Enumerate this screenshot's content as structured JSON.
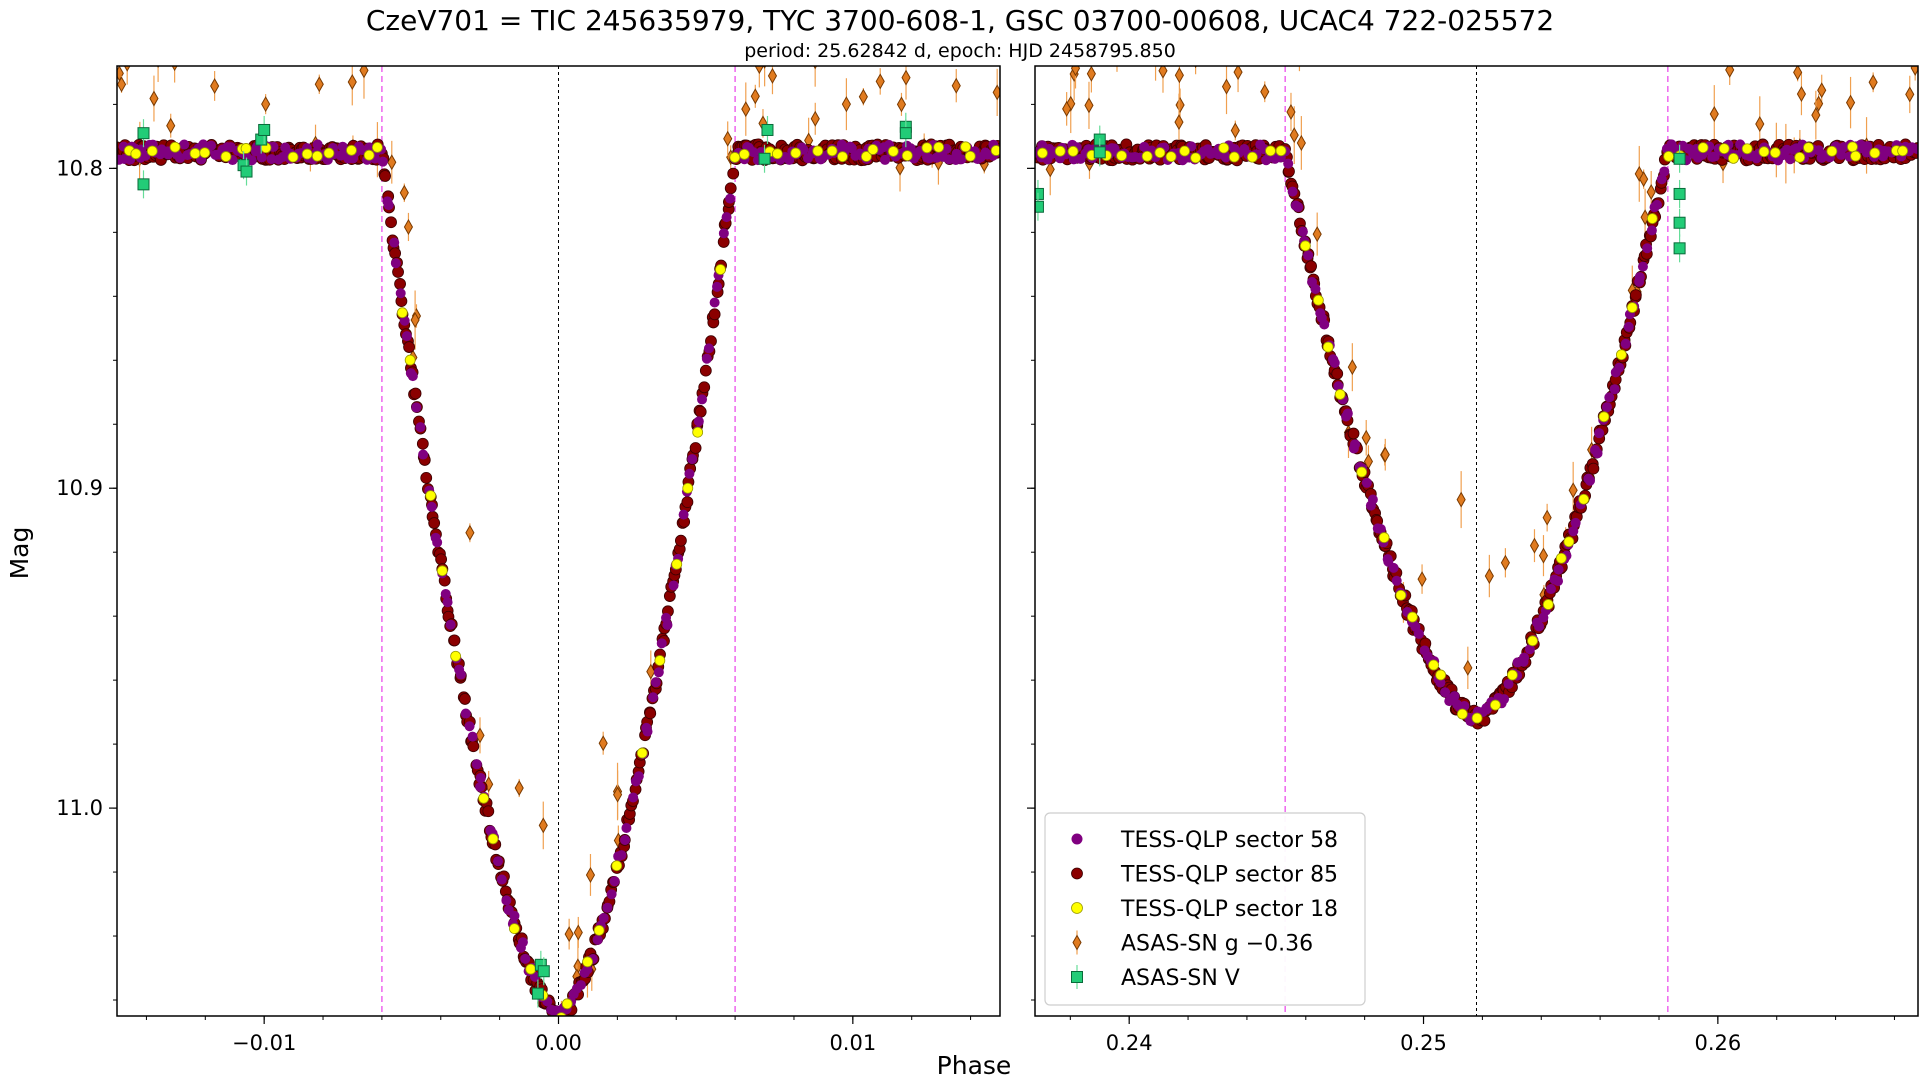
{
  "chart_data": {
    "type": "scatter",
    "title": "CzeV701 = TIC 245635979, TYC 3700-608-1, GSC 03700-00608, UCAC4 722-025572",
    "subtitle": "period: 25.62842 d, epoch: HJD 2458795.850",
    "xlabel": "Phase",
    "ylabel": "Mag",
    "y_inverted": true,
    "ylim": [
      11.065,
      10.768
    ],
    "yticks": [
      10.8,
      10.9,
      11.0
    ],
    "ytick_labels": [
      "10.8",
      "10.9",
      "11.0"
    ],
    "panels": [
      {
        "name": "primary",
        "xlim": [
          -0.015,
          0.015
        ],
        "xticks": [
          -0.01,
          0.0,
          0.01
        ],
        "xtick_labels": [
          "−0.01",
          "0.00",
          "0.01"
        ],
        "center": 0.0,
        "half_width": 0.006,
        "min_depth": 11.065,
        "eclipse_marks": [
          -0.006,
          0.006
        ],
        "center_mark": 0.0
      },
      {
        "name": "secondary",
        "xlim": [
          0.2368,
          0.2668
        ],
        "xticks": [
          0.24,
          0.25,
          0.26
        ],
        "xtick_labels": [
          "0.24",
          "0.25",
          "0.26"
        ],
        "center": 0.2518,
        "half_width": 0.0065,
        "min_depth": 10.972,
        "eclipse_marks": [
          0.2453,
          0.2583
        ],
        "center_mark": 0.2518
      }
    ],
    "baseline_mag": 10.795,
    "series": [
      {
        "name": "TESS-QLP sector 58",
        "marker": "circle",
        "color": "#800080",
        "edge": "none"
      },
      {
        "name": "TESS-QLP sector 85",
        "marker": "circle",
        "color": "#8b0000",
        "edge": "#3a0000"
      },
      {
        "name": "TESS-QLP sector 18",
        "marker": "circle",
        "color": "#ffff00",
        "edge": "#999900"
      },
      {
        "name": "ASAS-SN g −0.36",
        "marker": "diamond",
        "color": "#e07b20",
        "edge": "#7a3a00"
      },
      {
        "name": "ASAS-SN V",
        "marker": "square",
        "color": "#22cc77",
        "edge": "#0a6a3a"
      }
    ],
    "asassn_v_points": [
      {
        "panel": 0,
        "x": -0.0141,
        "y": 10.789
      },
      {
        "panel": 0,
        "x": -0.0141,
        "y": 10.805
      },
      {
        "panel": 0,
        "x": -0.0107,
        "y": 10.799
      },
      {
        "panel": 0,
        "x": -0.0106,
        "y": 10.801
      },
      {
        "panel": 0,
        "x": -0.0101,
        "y": 10.791
      },
      {
        "panel": 0,
        "x": -0.01,
        "y": 10.788
      },
      {
        "panel": 0,
        "x": -0.0006,
        "y": 11.049
      },
      {
        "panel": 0,
        "x": -0.0005,
        "y": 11.051
      },
      {
        "panel": 0,
        "x": -0.0007,
        "y": 11.058
      },
      {
        "panel": 0,
        "x": 0.0071,
        "y": 10.788
      },
      {
        "panel": 0,
        "x": 0.007,
        "y": 10.797
      },
      {
        "panel": 0,
        "x": 0.0118,
        "y": 10.787
      },
      {
        "panel": 0,
        "x": 0.0118,
        "y": 10.789
      },
      {
        "panel": 1,
        "x": 0.2369,
        "y": 10.808
      },
      {
        "panel": 1,
        "x": 0.2369,
        "y": 10.812
      },
      {
        "panel": 1,
        "x": 0.239,
        "y": 10.791
      },
      {
        "panel": 1,
        "x": 0.239,
        "y": 10.795
      },
      {
        "panel": 1,
        "x": 0.2587,
        "y": 10.797
      },
      {
        "panel": 1,
        "x": 0.2587,
        "y": 10.808
      },
      {
        "panel": 1,
        "x": 0.2587,
        "y": 10.817
      },
      {
        "panel": 1,
        "x": 0.2587,
        "y": 10.825
      }
    ]
  }
}
